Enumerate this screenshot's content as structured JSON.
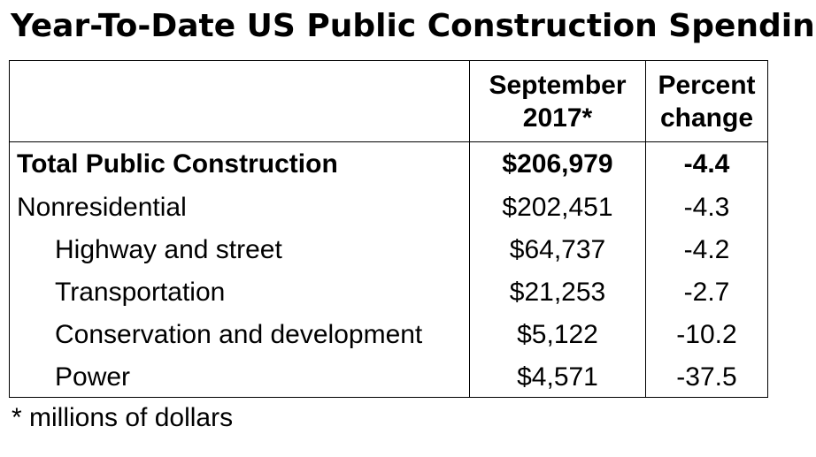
{
  "title": "Year-To-Date US Public Construction Spending",
  "table": {
    "headers": {
      "value_line1": "September",
      "value_line2": "2017*",
      "pct_line1": "Percent",
      "pct_line2": "change"
    },
    "rows": [
      {
        "label": "Total Public Construction",
        "value": "$206,979",
        "pct": "-4.4"
      },
      {
        "label": "Nonresidential",
        "value": "$202,451",
        "pct": "-4.3"
      },
      {
        "label": "Highway and street",
        "value": "$64,737",
        "pct": "-4.2"
      },
      {
        "label": "Transportation",
        "value": "$21,253",
        "pct": "-2.7"
      },
      {
        "label": "Conservation and development",
        "value": "$5,122",
        "pct": "-10.2"
      },
      {
        "label": "Power",
        "value": "$4,571",
        "pct": "-37.5"
      }
    ]
  },
  "footnote": "* millions of dollars"
}
